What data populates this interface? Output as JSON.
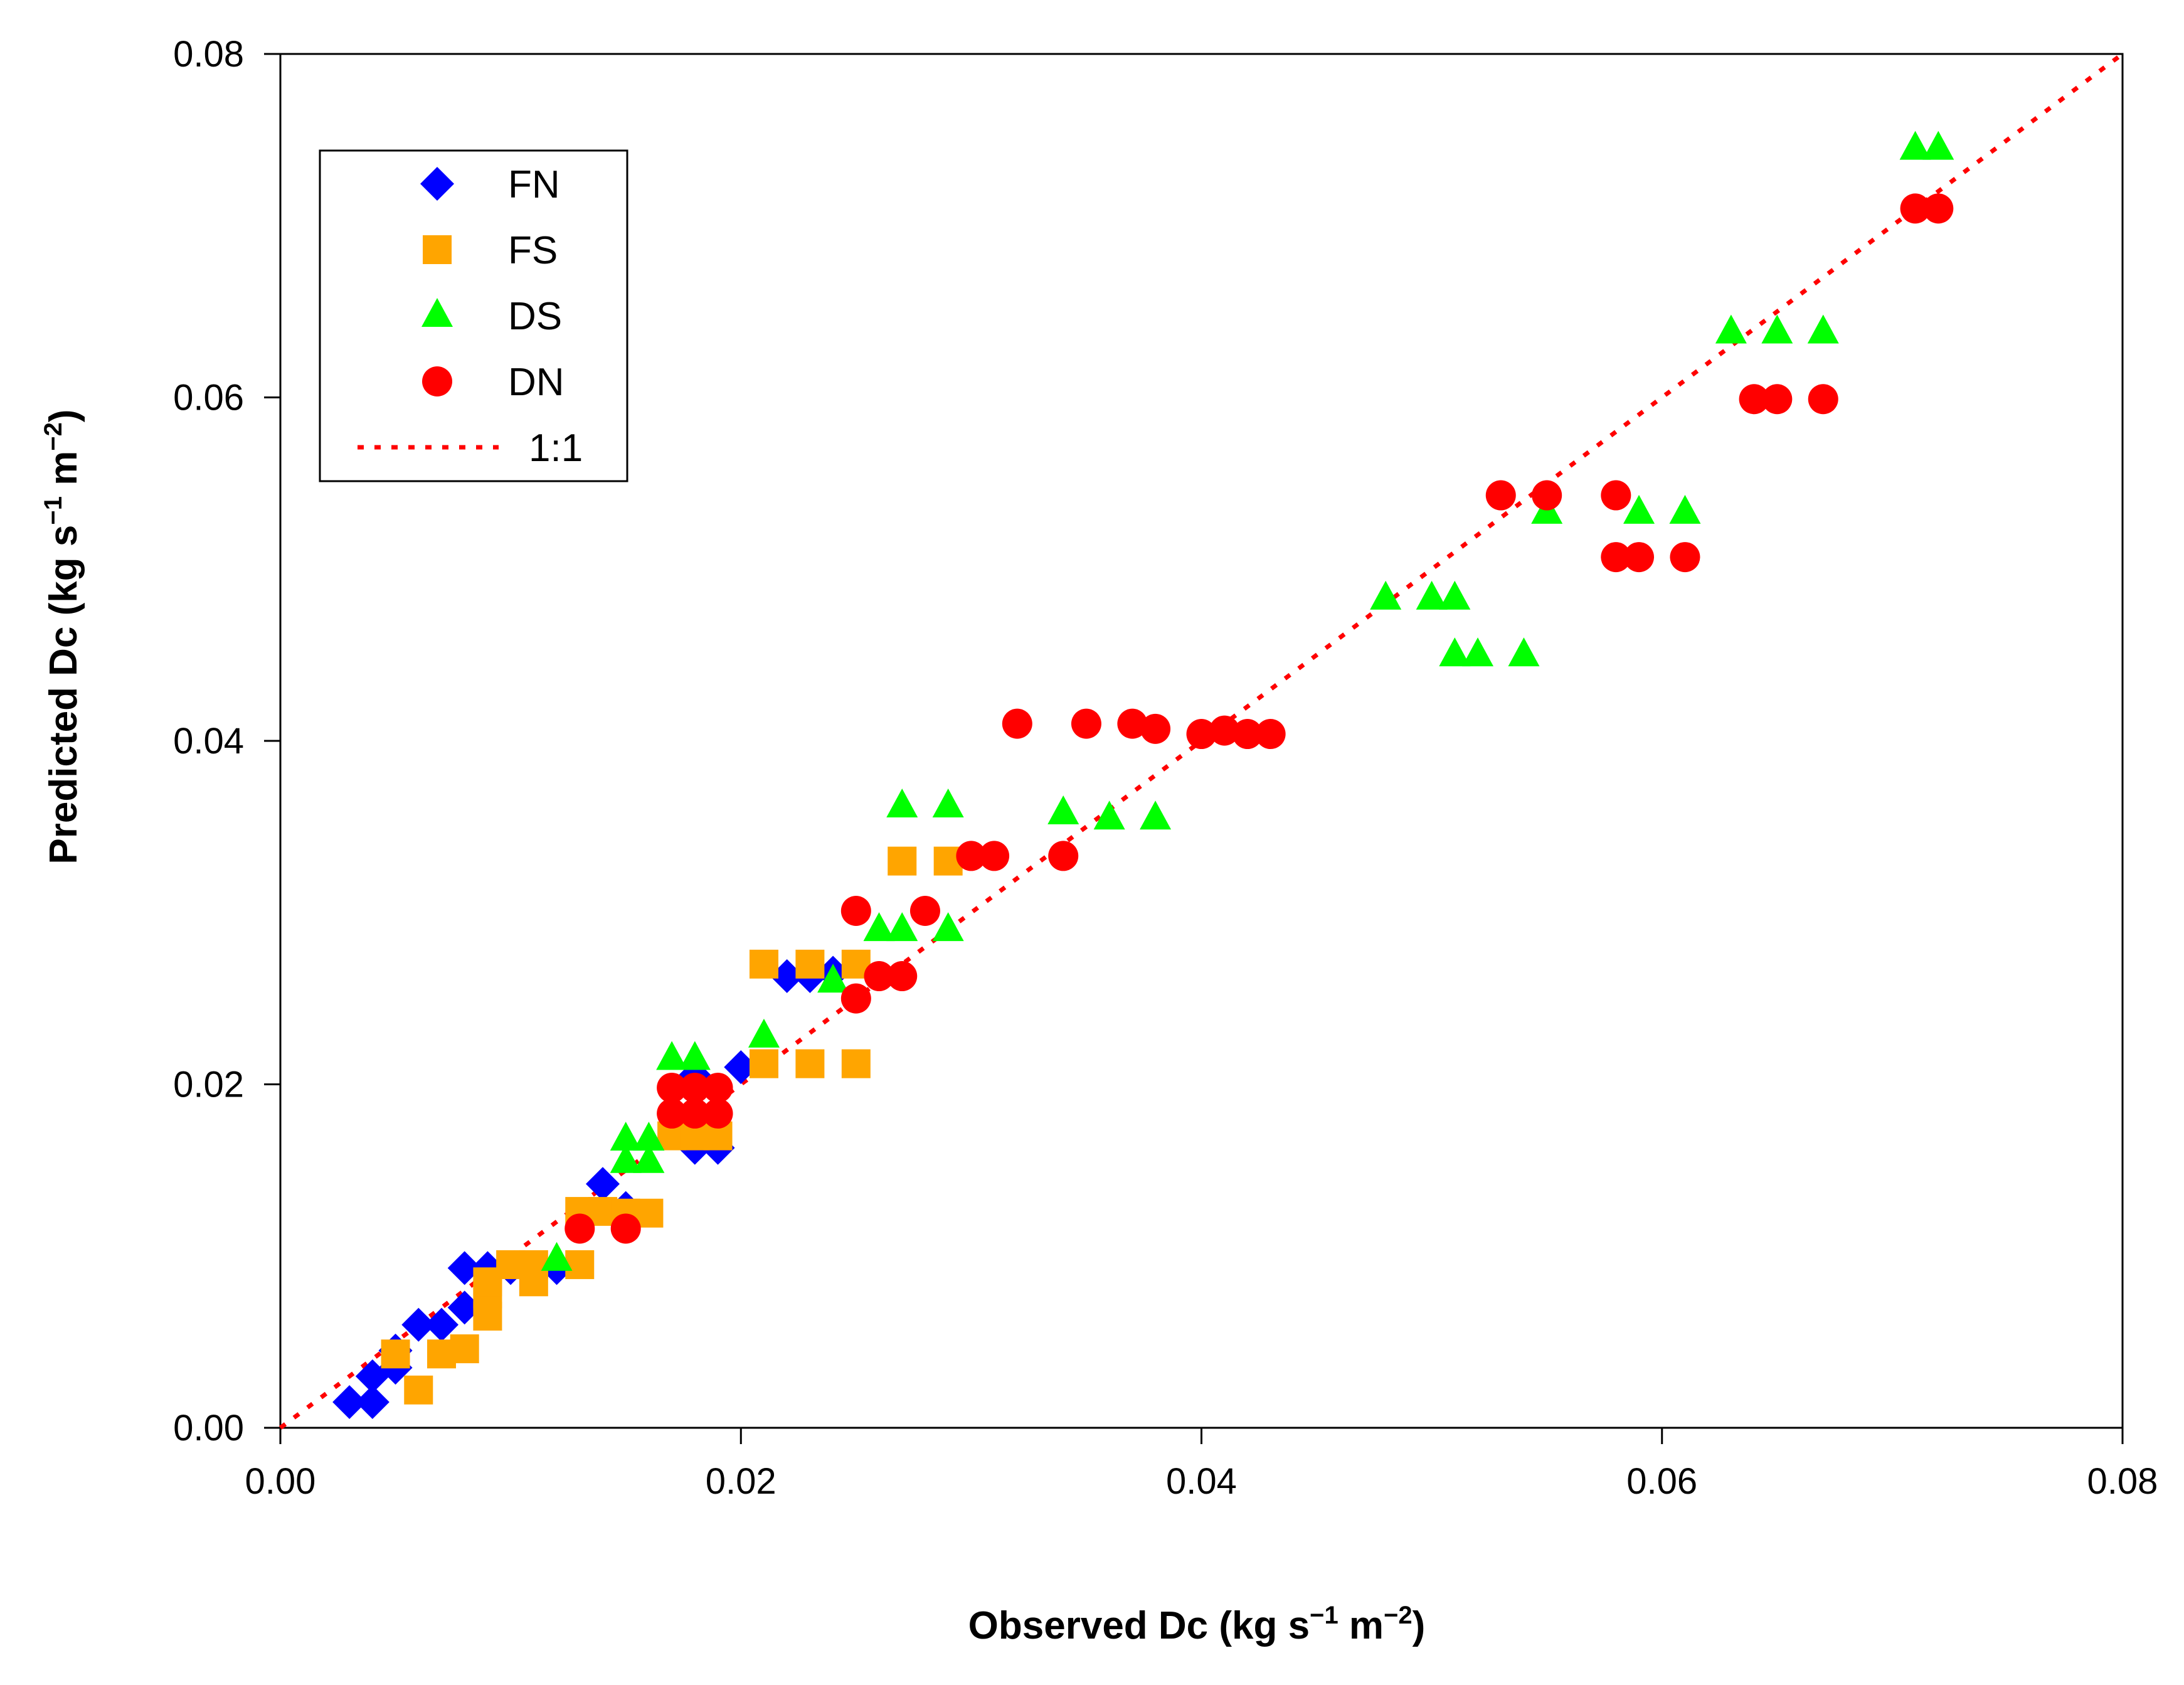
{
  "chart_data": {
    "type": "scatter",
    "xlabel": "Observed Dc (kg s−1 m−2)",
    "ylabel": "Predicted Dc (kg s−1 m−2)",
    "xlabel_parts": {
      "base": "Observed Dc (kg s",
      "exp1": "−1",
      "mid": " m",
      "exp2": "−2",
      "end": ")"
    },
    "ylabel_parts": {
      "base": "Predicted Dc (kg s",
      "exp1": "−1",
      "mid": " m",
      "exp2": "−2",
      "end": ")"
    },
    "xlim": [
      0,
      0.08
    ],
    "ylim": [
      0,
      0.08
    ],
    "xticks": [
      "0.00",
      "0.02",
      "0.04",
      "0.06",
      "0.08"
    ],
    "yticks": [
      "0.00",
      "0.02",
      "0.04",
      "0.06",
      "0.08"
    ],
    "xtick_values": [
      0,
      0.02,
      0.04,
      0.06,
      0.08
    ],
    "ytick_values": [
      0,
      0.02,
      0.04,
      0.06,
      0.08
    ],
    "grid": false,
    "legend_position": "top-left",
    "series": [
      {
        "name": "FN",
        "marker": "diamond",
        "color": "#0000ff",
        "points": [
          [
            0.003,
            0.0015
          ],
          [
            0.004,
            0.0015
          ],
          [
            0.004,
            0.003
          ],
          [
            0.005,
            0.0035
          ],
          [
            0.005,
            0.0045
          ],
          [
            0.006,
            0.006
          ],
          [
            0.007,
            0.006
          ],
          [
            0.008,
            0.007
          ],
          [
            0.008,
            0.0093
          ],
          [
            0.009,
            0.0093
          ],
          [
            0.01,
            0.0093
          ],
          [
            0.012,
            0.0093
          ],
          [
            0.014,
            0.0142
          ],
          [
            0.015,
            0.0128
          ],
          [
            0.018,
            0.0163
          ],
          [
            0.019,
            0.0163
          ],
          [
            0.018,
            0.0205
          ],
          [
            0.02,
            0.021
          ],
          [
            0.022,
            0.0263
          ],
          [
            0.023,
            0.0263
          ],
          [
            0.024,
            0.0265
          ]
        ]
      },
      {
        "name": "FS",
        "marker": "square",
        "color": "#ffa500",
        "points": [
          [
            0.005,
            0.0043
          ],
          [
            0.006,
            0.0022
          ],
          [
            0.007,
            0.0043
          ],
          [
            0.008,
            0.0046
          ],
          [
            0.009,
            0.0065
          ],
          [
            0.009,
            0.0078
          ],
          [
            0.009,
            0.0085
          ],
          [
            0.01,
            0.0095
          ],
          [
            0.011,
            0.0095
          ],
          [
            0.011,
            0.0085
          ],
          [
            0.013,
            0.0095
          ],
          [
            0.013,
            0.0126
          ],
          [
            0.014,
            0.0126
          ],
          [
            0.015,
            0.0125
          ],
          [
            0.016,
            0.0125
          ],
          [
            0.017,
            0.017
          ],
          [
            0.018,
            0.017
          ],
          [
            0.019,
            0.017
          ],
          [
            0.021,
            0.027
          ],
          [
            0.023,
            0.027
          ],
          [
            0.025,
            0.027
          ],
          [
            0.021,
            0.0212
          ],
          [
            0.023,
            0.0212
          ],
          [
            0.025,
            0.0212
          ],
          [
            0.027,
            0.033
          ],
          [
            0.029,
            0.033
          ]
        ]
      },
      {
        "name": "DS",
        "marker": "triangle",
        "color": "#00ff00",
        "points": [
          [
            0.012,
            0.0098
          ],
          [
            0.015,
            0.0168
          ],
          [
            0.016,
            0.0168
          ],
          [
            0.015,
            0.0155
          ],
          [
            0.016,
            0.0155
          ],
          [
            0.017,
            0.0215
          ],
          [
            0.018,
            0.0215
          ],
          [
            0.021,
            0.0228
          ],
          [
            0.024,
            0.026
          ],
          [
            0.026,
            0.029
          ],
          [
            0.027,
            0.029
          ],
          [
            0.029,
            0.029
          ],
          [
            0.027,
            0.0362
          ],
          [
            0.029,
            0.0362
          ],
          [
            0.034,
            0.0358
          ],
          [
            0.036,
            0.0355
          ],
          [
            0.038,
            0.0355
          ],
          [
            0.048,
            0.0483
          ],
          [
            0.05,
            0.0483
          ],
          [
            0.051,
            0.0483
          ],
          [
            0.051,
            0.045
          ],
          [
            0.052,
            0.045
          ],
          [
            0.054,
            0.045
          ],
          [
            0.055,
            0.0533
          ],
          [
            0.059,
            0.0533
          ],
          [
            0.061,
            0.0533
          ],
          [
            0.063,
            0.0638
          ],
          [
            0.065,
            0.0638
          ],
          [
            0.067,
            0.0638
          ],
          [
            0.071,
            0.0745
          ],
          [
            0.072,
            0.0745
          ]
        ]
      },
      {
        "name": "DN",
        "marker": "circle",
        "color": "#ff0000",
        "points": [
          [
            0.013,
            0.0116
          ],
          [
            0.015,
            0.0116
          ],
          [
            0.017,
            0.0198
          ],
          [
            0.018,
            0.0198
          ],
          [
            0.019,
            0.0198
          ],
          [
            0.017,
            0.0183
          ],
          [
            0.018,
            0.0183
          ],
          [
            0.019,
            0.0183
          ],
          [
            0.025,
            0.0301
          ],
          [
            0.025,
            0.025
          ],
          [
            0.026,
            0.0263
          ],
          [
            0.027,
            0.0263
          ],
          [
            0.028,
            0.0301
          ],
          [
            0.03,
            0.0333
          ],
          [
            0.031,
            0.0333
          ],
          [
            0.034,
            0.0333
          ],
          [
            0.032,
            0.041
          ],
          [
            0.035,
            0.041
          ],
          [
            0.037,
            0.041
          ],
          [
            0.038,
            0.0407
          ],
          [
            0.04,
            0.0404
          ],
          [
            0.041,
            0.0406
          ],
          [
            0.042,
            0.0404
          ],
          [
            0.043,
            0.0404
          ],
          [
            0.053,
            0.0543
          ],
          [
            0.055,
            0.0543
          ],
          [
            0.058,
            0.0543
          ],
          [
            0.058,
            0.0507
          ],
          [
            0.059,
            0.0507
          ],
          [
            0.061,
            0.0507
          ],
          [
            0.064,
            0.0599
          ],
          [
            0.065,
            0.0599
          ],
          [
            0.067,
            0.0599
          ],
          [
            0.071,
            0.071
          ],
          [
            0.072,
            0.071
          ]
        ]
      }
    ],
    "reference_line": {
      "name": "1:1",
      "style": "dotted",
      "color": "#ff0000",
      "from": [
        0,
        0
      ],
      "to": [
        0.08,
        0.08
      ]
    }
  }
}
